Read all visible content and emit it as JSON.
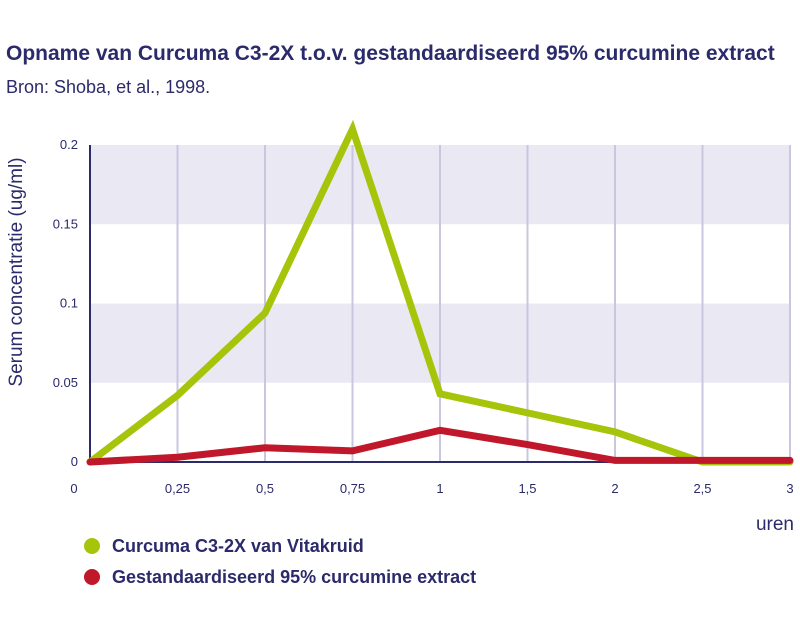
{
  "title": "Opname van Curcuma C3-2X t.o.v. gestandaardiseerd 95% curcumine extract",
  "subtitle": "Bron: Shoba, et al., 1998.",
  "chart_data": {
    "type": "line",
    "ylabel": "Serum concentratie (ug/ml)",
    "xlabel": "uren",
    "x_ticks": [
      "0",
      "0,25",
      "0,5",
      "0,75",
      "1",
      "1,5",
      "2",
      "2,5",
      "3"
    ],
    "y_ticks": [
      "0",
      "0.05",
      "0.1",
      "0.15",
      "0.2"
    ],
    "ylim": [
      0,
      0.2
    ],
    "grid": "bands",
    "legend": "bottom-left",
    "series": [
      {
        "name": "Curcuma C3-2X van Vitakruid",
        "color": "#a5c40a",
        "points": [
          [
            0,
            0
          ],
          [
            0.25,
            0.042
          ],
          [
            0.5,
            0.094
          ],
          [
            0.75,
            0.21
          ],
          [
            1,
            0.043
          ],
          [
            1.5,
            0.031
          ],
          [
            2,
            0.019
          ],
          [
            2.5,
            0.0
          ],
          [
            3,
            0.0
          ]
        ]
      },
      {
        "name": "Gestandaardiseerd 95% curcumine extract",
        "color": "#c0182a",
        "points": [
          [
            0,
            0
          ],
          [
            0.25,
            0.003
          ],
          [
            0.5,
            0.009
          ],
          [
            0.75,
            0.007
          ],
          [
            1,
            0.02
          ],
          [
            1.5,
            0.011
          ],
          [
            2,
            0.001
          ],
          [
            2.5,
            0.001
          ],
          [
            3,
            0.001
          ]
        ]
      }
    ]
  }
}
